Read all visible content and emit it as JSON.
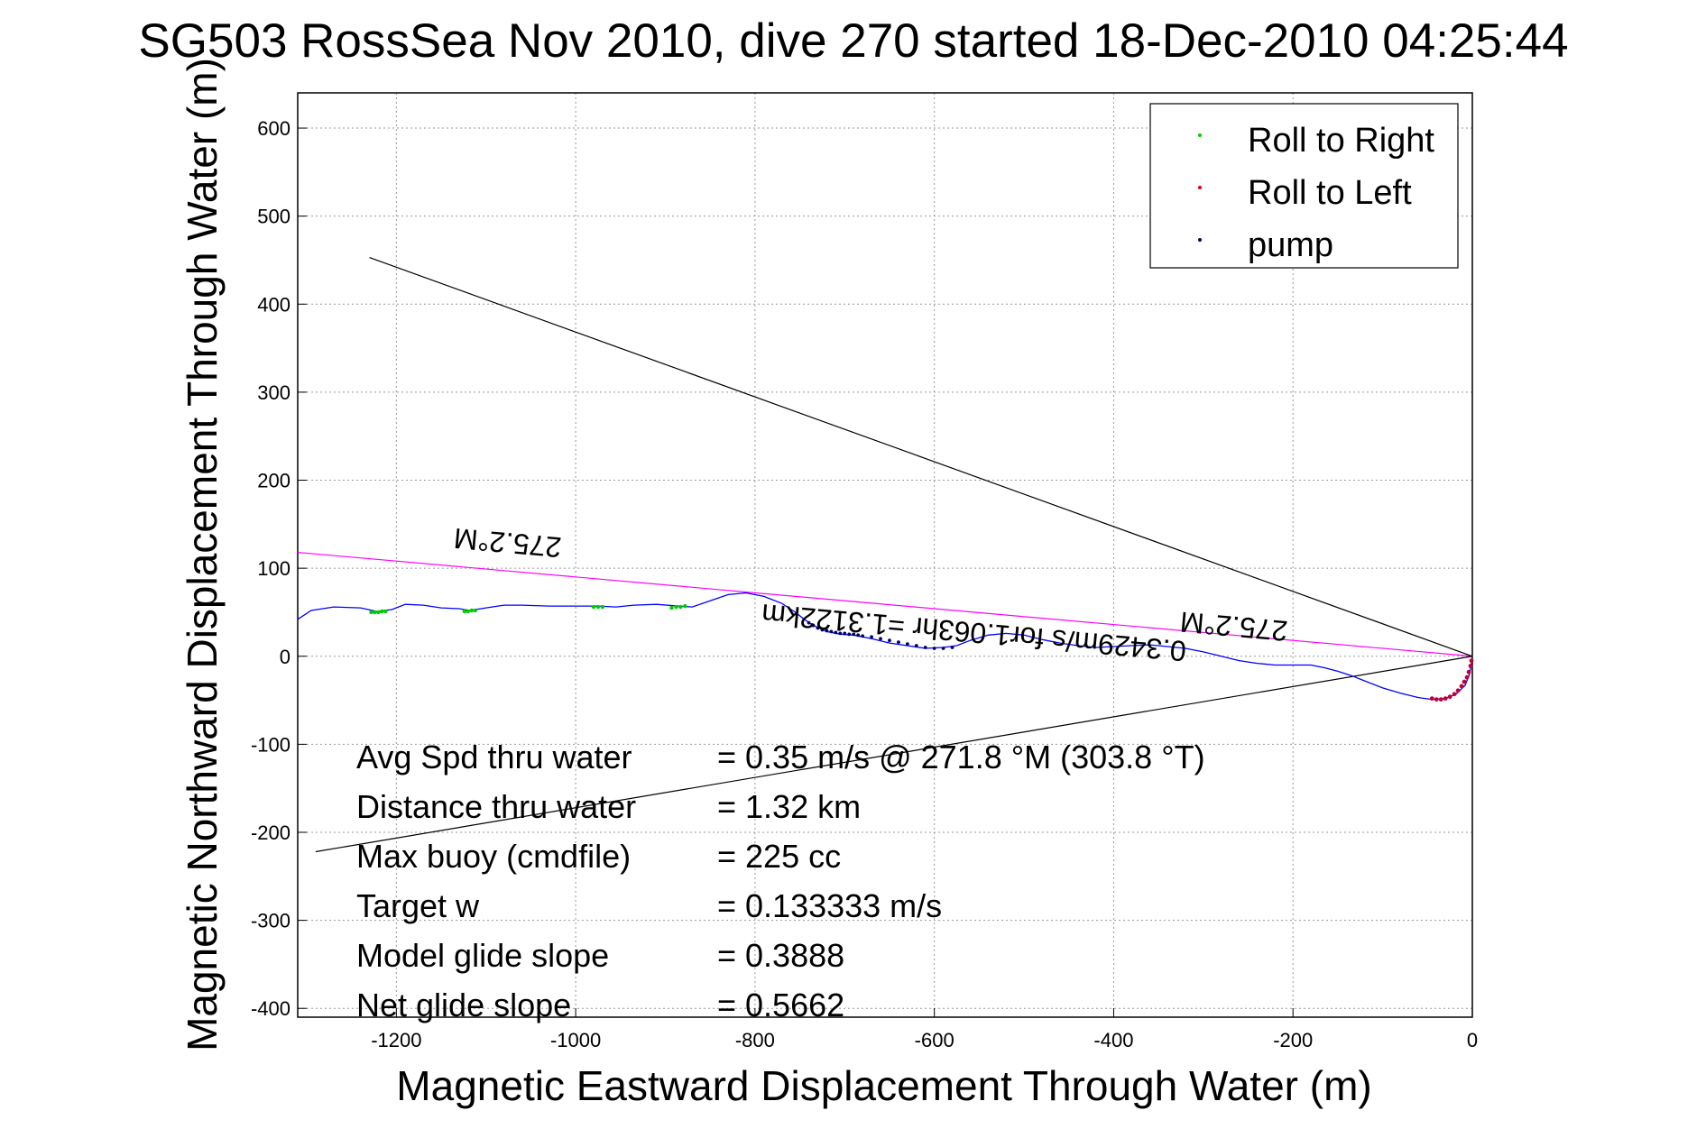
{
  "chart_data": {
    "type": "line",
    "title": "SG503 RossSea Nov 2010, dive 270 started 18-Dec-2010 04:25:44",
    "xlabel": "Magnetic Eastward Displacement Through Water (m)",
    "ylabel": "Magnetic Northward Displacement Through Water (m)",
    "xlim": [
      -1310,
      0
    ],
    "ylim": [
      -410,
      640
    ],
    "xticks": [
      -1200,
      -1000,
      -800,
      -600,
      -400,
      -200,
      0
    ],
    "yticks": [
      -400,
      -300,
      -200,
      -100,
      0,
      100,
      200,
      300,
      400,
      500,
      600
    ],
    "grid": true,
    "legend_position": "top-right",
    "legend": [
      {
        "label": "Roll to Right",
        "color": "#00cc00"
      },
      {
        "label": "Roll to Left",
        "color": "#e00000"
      },
      {
        "label": "pump",
        "color": "#000066"
      }
    ],
    "track": {
      "color": "#0000ff",
      "x": [
        -1310,
        -1295,
        -1270,
        -1240,
        -1222,
        -1205,
        -1190,
        -1170,
        -1150,
        -1130,
        -1118,
        -1100,
        -1080,
        -1060,
        -1030,
        -1000,
        -975,
        -955,
        -935,
        -910,
        -885,
        -870,
        -850,
        -830,
        -810,
        -790,
        -770,
        -755,
        -745,
        -735,
        -720,
        -705,
        -690,
        -670,
        -650,
        -630,
        -610,
        -590,
        -575,
        -560,
        -540,
        -520,
        -500,
        -480,
        -460,
        -440,
        -420,
        -400,
        -380,
        -360,
        -340,
        -320,
        -300,
        -280,
        -260,
        -240,
        -220,
        -200,
        -180,
        -165,
        -150,
        -135,
        -120,
        -100,
        -80,
        -60,
        -45,
        -30,
        -18,
        -8,
        -3,
        0
      ],
      "y": [
        42,
        52,
        56,
        55,
        51,
        53,
        59,
        58,
        55,
        54,
        52,
        55,
        58,
        58,
        57,
        57,
        57,
        56,
        58,
        59,
        57,
        56,
        63,
        70,
        72,
        68,
        60,
        50,
        42,
        35,
        28,
        25,
        24,
        20,
        15,
        12,
        9,
        10,
        12,
        18,
        24,
        26,
        24,
        19,
        15,
        12,
        10,
        11,
        12,
        13,
        11,
        9,
        5,
        0,
        -5,
        -8,
        -10,
        -10,
        -10,
        -13,
        -17,
        -22,
        -28,
        -36,
        -42,
        -47,
        -49,
        -48,
        -43,
        -33,
        -20,
        -3
      ]
    },
    "roll_right": {
      "color": "#00cc00",
      "x": [
        -1228,
        -1224,
        -1220,
        -1216,
        -1212,
        -1124,
        -1120,
        -1116,
        -1112,
        -980,
        -975,
        -970,
        -893,
        -888,
        -883,
        -878
      ],
      "y": [
        50,
        50,
        50,
        51,
        51,
        51,
        51,
        52,
        52,
        56,
        56,
        56,
        55,
        56,
        56,
        57
      ]
    },
    "roll_left": {
      "color": "#c0003a",
      "x": [
        -45,
        -40,
        -35,
        -30,
        -25,
        -20,
        -16,
        -12,
        -9,
        -6,
        -4,
        -2,
        -1
      ],
      "y": [
        -48,
        -49,
        -49,
        -48,
        -46,
        -43,
        -39,
        -34,
        -29,
        -24,
        -18,
        -11,
        -5
      ]
    },
    "pump": {
      "color": "#000066",
      "x": [
        -740,
        -735,
        -730,
        -725,
        -720,
        -715,
        -710,
        -705,
        -700,
        -695,
        -690,
        -685,
        -680,
        -670,
        -660,
        -650,
        -640,
        -630,
        -620,
        -610,
        -600,
        -590,
        -580
      ],
      "y": [
        38,
        35,
        32,
        30,
        29,
        28,
        27,
        26,
        26,
        25,
        25,
        24,
        23,
        22,
        20,
        18,
        16,
        14,
        12,
        10,
        9,
        9,
        10
      ]
    },
    "lines": [
      {
        "name": "heading",
        "color": "#ff00ff",
        "x": [
          -1310,
          0
        ],
        "y": [
          118,
          0
        ]
      },
      {
        "name": "upper",
        "color": "#000000",
        "x": [
          -1230,
          0
        ],
        "y": [
          453,
          0
        ]
      },
      {
        "name": "lower",
        "color": "#000000",
        "x": [
          -1290,
          0
        ],
        "y": [
          -222,
          0
        ]
      }
    ],
    "rotated_labels": [
      {
        "text": "275.2°M",
        "x": -1075,
        "y": 140
      },
      {
        "text": "0.3429m/s for1.063hr =1.3122km",
        "x": -555,
        "y": 38
      },
      {
        "text": "275.2°M",
        "x": -265,
        "y": 45
      }
    ],
    "stats": [
      {
        "label": "Avg Spd thru water",
        "value": "=  0.35 m/s @ 271.8 °M (303.8 °T)"
      },
      {
        "label": "Distance thru water",
        "value": "=  1.32 km"
      },
      {
        "label": "Max buoy (cmdfile)",
        "value": "= 225 cc"
      },
      {
        "label": "Target w",
        "value": "= 0.133333 m/s"
      },
      {
        "label": "Model glide slope",
        "value": "= 0.3888"
      },
      {
        "label": "Net glide slope",
        "value": "= 0.5662"
      }
    ]
  }
}
